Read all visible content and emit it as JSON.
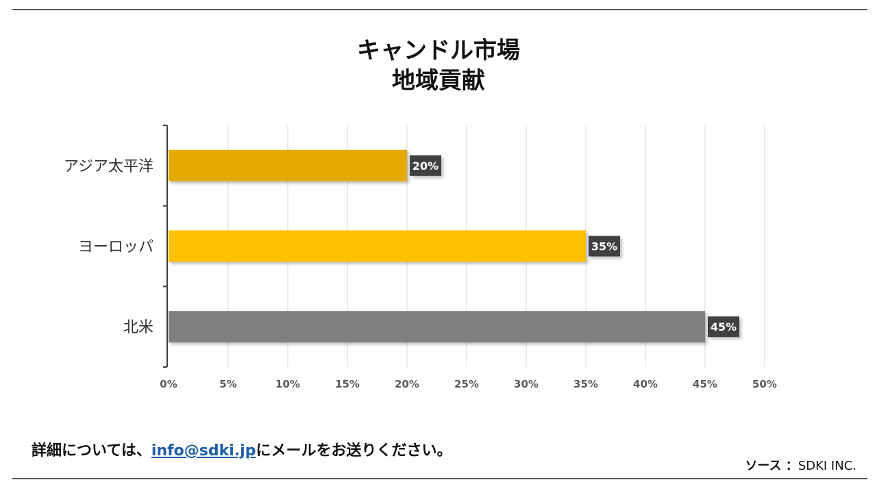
{
  "title": {
    "line1": "キャンドル市場",
    "line2": "地域貢献"
  },
  "chart_data": {
    "type": "bar",
    "orientation": "horizontal",
    "categories": [
      "アジア太平洋",
      "ヨーロッパ",
      "北米"
    ],
    "values": [
      20,
      35,
      45
    ],
    "data_labels": [
      "20%",
      "35%",
      "45%"
    ],
    "bar_colors": [
      "#e3aa00",
      "#ffc000",
      "#808080"
    ],
    "xlim": [
      0,
      50
    ],
    "x_ticks": [
      0,
      5,
      10,
      15,
      20,
      25,
      30,
      35,
      40,
      45,
      50
    ],
    "x_tick_labels": [
      "0%",
      "5%",
      "10%",
      "15%",
      "20%",
      "25%",
      "30%",
      "35%",
      "40%",
      "45%",
      "50%"
    ],
    "grid": true,
    "title": "キャンドル市場 地域貢献"
  },
  "footer": {
    "prefix": "詳細については、",
    "email": "info@sdki.jp",
    "suffix": "にメールをお送りください。"
  },
  "source": {
    "label": "ソース ：",
    "value": "SDKI INC."
  },
  "colors": {
    "label_bg": "#404040",
    "grid": "#d9d9d9",
    "axis": "#404040",
    "link": "#1f5fa8"
  }
}
